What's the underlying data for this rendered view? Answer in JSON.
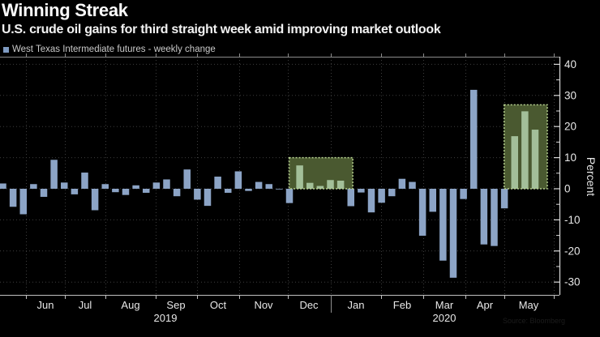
{
  "header": {
    "title": "Winning Streak",
    "subtitle": "U.S. crude oil gains for third straight week amid improving market outlook"
  },
  "legend": {
    "label": "West Texas Intermediate futures - weekly change",
    "marker_color": "#7f9bc2"
  },
  "footnote": "Source: Bloomberg",
  "chart_data": {
    "type": "bar",
    "title": "Winning Streak",
    "subtitle": "U.S. crude oil gains for third straight week amid improving market outlook",
    "series": [
      {
        "name": "West Texas Intermediate futures - weekly change",
        "values": [
          1.7,
          -5.8,
          -8.2,
          1.5,
          -2.6,
          9.3,
          2.0,
          -1.8,
          5.2,
          -6.9,
          1.5,
          -1.1,
          -2.0,
          1.1,
          -1.3,
          2.0,
          3.0,
          -2.4,
          6.2,
          -3.5,
          -5.5,
          3.9,
          -1.3,
          5.6,
          -0.7,
          2.2,
          1.5,
          -0.2,
          -4.6,
          7.5,
          1.9,
          0.9,
          2.8,
          2.6,
          -5.6,
          -1.2,
          -7.6,
          -4.5,
          -2.4,
          3.2,
          2.2,
          -15.1,
          -7.4,
          -23.1,
          -28.6,
          -3.3,
          31.8,
          -17.9,
          -18.4,
          -6.3,
          16.9,
          24.9,
          19.0
        ]
      }
    ],
    "x_unit": "weekly",
    "ylabel": "Percent",
    "ylim": [
      -34,
      42.5
    ],
    "y_major_ticks": [
      40,
      30,
      20,
      10,
      0,
      -10,
      -20,
      -30
    ],
    "y_minor_ticks": [
      35,
      25,
      15,
      5,
      -5,
      -15,
      -25
    ],
    "grid": true,
    "legend_position": "top-left",
    "axis_side": "right",
    "highlight_boxes": [
      {
        "start_index": 29,
        "end_index": 33,
        "top_percent": 10
      },
      {
        "start_index": 50,
        "end_index": 52,
        "top_percent": 27
      }
    ],
    "x_axis": {
      "months": [
        {
          "label": "Jun",
          "center": 56
        },
        {
          "label": "Jul",
          "center": 105
        },
        {
          "label": "Aug",
          "center": 161
        },
        {
          "label": "Sep",
          "center": 217
        },
        {
          "label": "Oct",
          "center": 269
        },
        {
          "label": "Nov",
          "center": 325
        },
        {
          "label": "Dec",
          "center": 381
        },
        {
          "label": "Jan",
          "center": 439
        },
        {
          "label": "Feb",
          "center": 496
        },
        {
          "label": "Mar",
          "center": 548
        },
        {
          "label": "Apr",
          "center": 598
        },
        {
          "label": "May",
          "center": 652
        }
      ],
      "boundaries": [
        32,
        80,
        130,
        192,
        243,
        295,
        355,
        408,
        470,
        522,
        574,
        622,
        683
      ],
      "years": [
        {
          "label": "2019",
          "center": 204
        },
        {
          "label": "2020",
          "center": 548
        }
      ],
      "year_separator_x": 408
    },
    "colors": {
      "bar": "#8ca4c6",
      "highlight_bar": "#a3bf99",
      "box_fill": "#4a5930",
      "box_border": "#b6d18f",
      "grid": "#3d3d3d",
      "axis_line": "#d9d9d9",
      "top_border": "#8a8a8a",
      "bottom_axis": "#c0c0c0",
      "tick_text": "#e8e8e8"
    }
  }
}
